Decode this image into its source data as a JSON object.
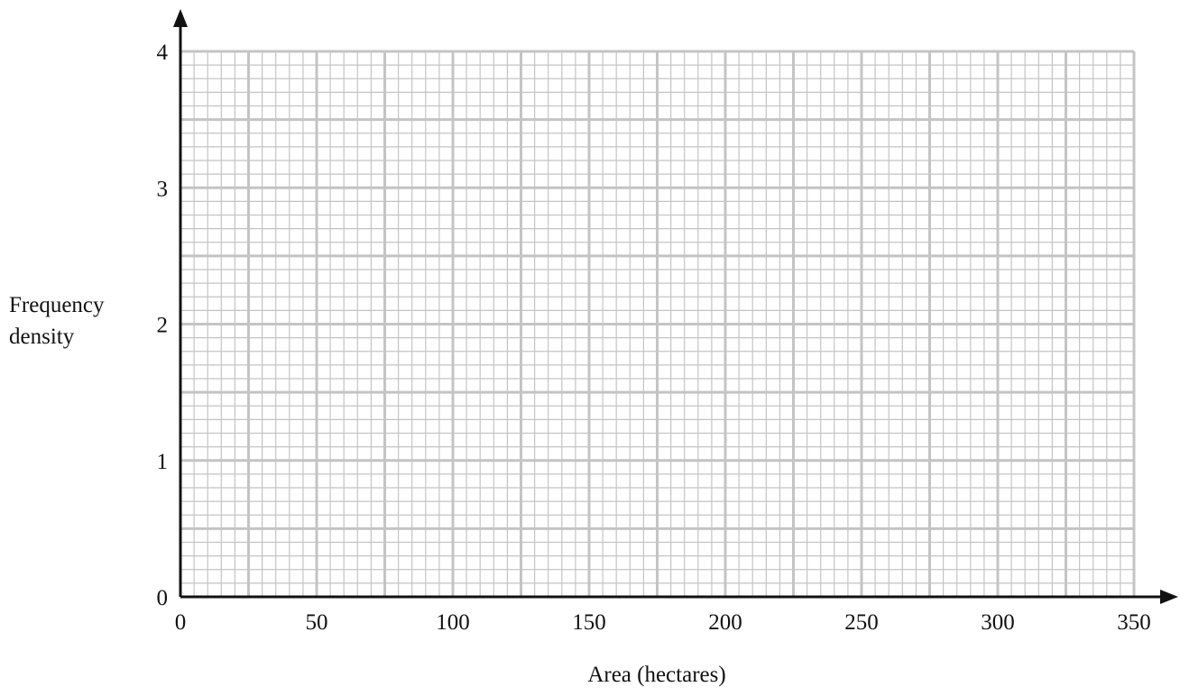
{
  "chart_data": {
    "type": "histogram",
    "title": "",
    "xlabel": "Area (hectares)",
    "ylabel_lines": [
      "Frequency",
      "density"
    ],
    "xlim": [
      0,
      350
    ],
    "ylim": [
      0,
      4
    ],
    "x_ticks": [
      0,
      50,
      100,
      150,
      200,
      250,
      300,
      350
    ],
    "y_ticks": [
      0,
      1,
      2,
      3,
      4
    ],
    "x_tick_labels": [
      "0",
      "50",
      "100",
      "150",
      "200",
      "250",
      "300",
      "350"
    ],
    "y_tick_labels": [
      "0",
      "1",
      "2",
      "3",
      "4"
    ],
    "grid": true,
    "grid_minor_step_x": 5,
    "grid_minor_step_y": 0.1,
    "grid_major_step_x": 25,
    "grid_major_step_y": 0.5,
    "series": [],
    "colors": {
      "grid": "#c4c4c4",
      "axis": "#111111",
      "background": "#ffffff"
    }
  }
}
